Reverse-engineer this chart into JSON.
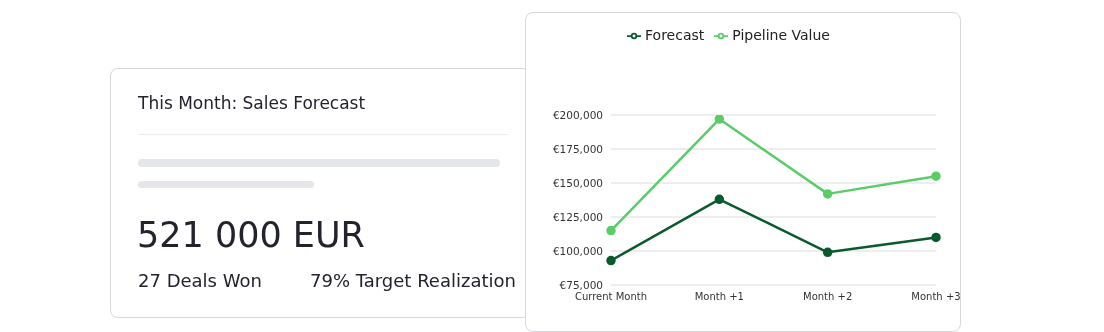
{
  "chart_data": [
    {
      "type": "other",
      "title": "This Month: Sales Forecast",
      "annotations": [
        "521 000 EUR",
        "27 Deals Won",
        "79% Target Realization"
      ]
    },
    {
      "type": "line",
      "categories": [
        "Current Month",
        "Month +1",
        "Month +2",
        "Month +3"
      ],
      "series": [
        {
          "name": "Pipeline Value",
          "color": "#5ccb6a",
          "values": [
            115000,
            197000,
            142000,
            155000
          ]
        },
        {
          "name": "Forecast",
          "color": "#0b5a2e",
          "values": [
            93000,
            138000,
            99000,
            110000
          ]
        }
      ],
      "ylim": [
        75000,
        200000
      ],
      "yticks": [
        {
          "value": 75000,
          "label": "€75,000"
        },
        {
          "value": 100000,
          "label": "€100,000"
        },
        {
          "value": 125000,
          "label": "€125,000"
        },
        {
          "value": 150000,
          "label": "€150,000"
        },
        {
          "value": 175000,
          "label": "€175,000"
        },
        {
          "value": 200000,
          "label": "€200,000"
        }
      ],
      "grid": "y",
      "legend": "top",
      "marker": "circle",
      "line_style": "solid"
    }
  ]
}
